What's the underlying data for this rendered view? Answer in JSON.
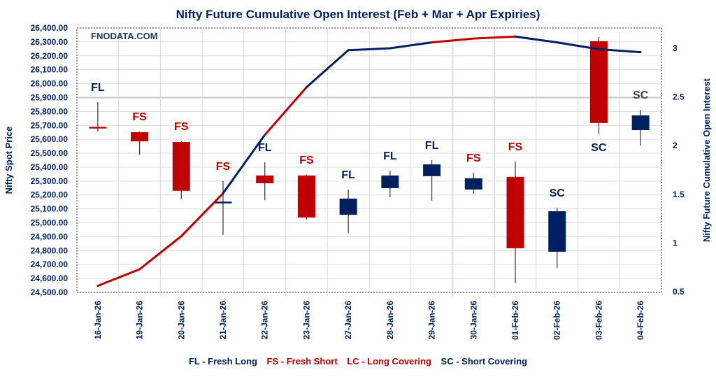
{
  "chart_data": {
    "type": "candlestick+line",
    "title": "Nifty Future Cumulative Open Interest (Feb + Mar + Apr Expiries)",
    "watermark": "FNODATA.COM",
    "ylabel_left": "Nifty Spot Price",
    "ylabel_right": "Nifty Future Cumulative Open Interest",
    "ylim_left": [
      24500,
      26400
    ],
    "yticks_left": [
      "24,500.00",
      "24,600.00",
      "24,700.00",
      "24,800.00",
      "24,900.00",
      "25,000.00",
      "25,100.00",
      "25,200.00",
      "25,300.00",
      "25,400.00",
      "25,500.00",
      "25,600.00",
      "25,700.00",
      "25,800.00",
      "25,900.00",
      "26,000.00",
      "26,100.00",
      "26,200.00",
      "26,300.00",
      "26,400.00"
    ],
    "ylim_right": [
      0.5,
      3.1
    ],
    "yticks_right": [
      "0.5",
      "1",
      "1.5",
      "2",
      "2.5",
      "3"
    ],
    "grid": true,
    "categories": [
      "16-Jan-26",
      "19-Jan-26",
      "20-Jan-26",
      "21-Jan-26",
      "22-Jan-26",
      "23-Jan-26",
      "27-Jan-26",
      "28-Jan-26",
      "29-Jan-26",
      "30-Jan-26",
      "01-Feb-26",
      "02-Feb-26",
      "03-Feb-26",
      "04-Feb-26"
    ],
    "ohlc": [
      {
        "open": 25690,
        "high": 25867,
        "low": 25656,
        "close": 25685,
        "color": "#c00000"
      },
      {
        "open": 25651,
        "high": 25655,
        "low": 25490,
        "close": 25585,
        "color": "#c00000"
      },
      {
        "open": 25581,
        "high": 25585,
        "low": 25170,
        "close": 25230,
        "color": "#c00000"
      },
      {
        "open": 25145,
        "high": 25300,
        "low": 24913,
        "close": 25152,
        "color": "#002060"
      },
      {
        "open": 25340,
        "high": 25435,
        "low": 25164,
        "close": 25284,
        "color": "#c00000"
      },
      {
        "open": 25340,
        "high": 25345,
        "low": 25023,
        "close": 25038,
        "color": "#c00000"
      },
      {
        "open": 25058,
        "high": 25239,
        "low": 24928,
        "close": 25174,
        "color": "#002060"
      },
      {
        "open": 25249,
        "high": 25375,
        "low": 25184,
        "close": 25340,
        "color": "#002060"
      },
      {
        "open": 25335,
        "high": 25450,
        "low": 25159,
        "close": 25420,
        "color": "#002060"
      },
      {
        "open": 25239,
        "high": 25360,
        "low": 25209,
        "close": 25320,
        "color": "#002060"
      },
      {
        "open": 25330,
        "high": 25440,
        "low": 24566,
        "close": 24817,
        "color": "#c00000"
      },
      {
        "open": 24792,
        "high": 25109,
        "low": 24676,
        "close": 25083,
        "color": "#002060"
      },
      {
        "open": 26305,
        "high": 26335,
        "low": 25636,
        "close": 25717,
        "color": "#c00000"
      },
      {
        "open": 25666,
        "high": 25812,
        "low": 25556,
        "close": 25772,
        "color": "#002060"
      }
    ],
    "open_interest": [
      0.56,
      0.73,
      1.07,
      1.51,
      2.11,
      2.6,
      2.98,
      3.0,
      3.06,
      3.1,
      3.12,
      3.06,
      2.99,
      2.96
    ],
    "labels": [
      {
        "text": "FL",
        "color": "#002060",
        "pos": "above"
      },
      {
        "text": "FS",
        "color": "#c00000",
        "pos": "above"
      },
      {
        "text": "FS",
        "color": "#c00000",
        "pos": "above"
      },
      {
        "text": "FS",
        "color": "#c00000",
        "pos": "above"
      },
      {
        "text": "FL",
        "color": "#002060",
        "pos": "above"
      },
      {
        "text": "FS",
        "color": "#c00000",
        "pos": "above"
      },
      {
        "text": "FL",
        "color": "#002060",
        "pos": "above"
      },
      {
        "text": "FL",
        "color": "#002060",
        "pos": "above"
      },
      {
        "text": "FL",
        "color": "#002060",
        "pos": "above"
      },
      {
        "text": "FS",
        "color": "#c00000",
        "pos": "above"
      },
      {
        "text": "FS",
        "color": "#c00000",
        "pos": "above"
      },
      {
        "text": "SC",
        "color": "#002060",
        "pos": "above"
      },
      {
        "text": "SC",
        "color": "#002060",
        "pos": "below"
      },
      {
        "text": "SC",
        "color": "#404040",
        "pos": "above"
      }
    ],
    "legend": [
      {
        "text": "FL - Fresh Long",
        "color": "#002060"
      },
      {
        "text": "FS - Fresh Short",
        "color": "#c00000"
      },
      {
        "text": "LC - Long Covering",
        "color": "#c00000"
      },
      {
        "text": "SC - Short Covering",
        "color": "#002060"
      }
    ]
  }
}
